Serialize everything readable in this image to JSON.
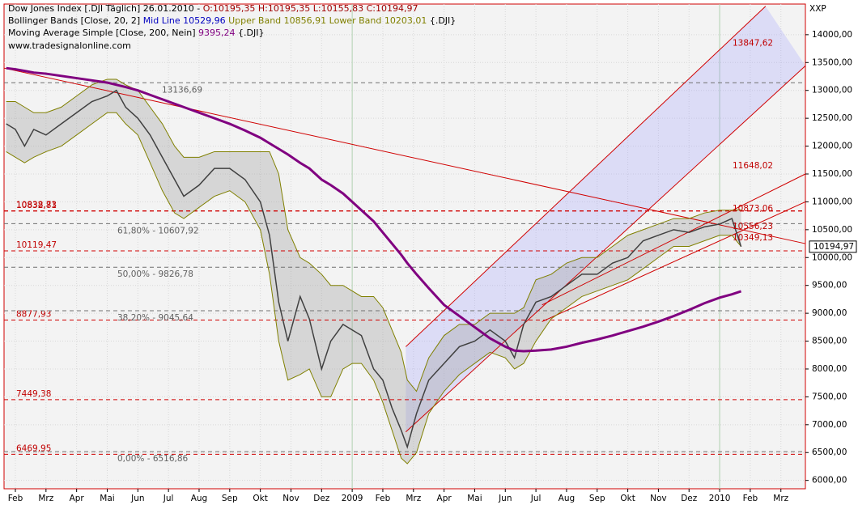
{
  "chart_data": {
    "type": "line",
    "header": {
      "instrument": "Dow Jones Index [.DJI Täglich] 26.01.2010 -",
      "ohlc": "O:10195,35 H:10195,35 L:10155,83 C:10194,97",
      "bb_name": "Bollinger Bands [Close, 20, 2]",
      "bb_mid": "Mid Line 10529,96",
      "bb_upper": "Upper Band 10856,91 Lower Band 10203,01",
      "bb_symbol": "{.DJI}",
      "ma_name": "Moving Average Simple [Close, 200, Nein]",
      "ma_value": "9395,24",
      "ma_symbol": "{.DJI}",
      "website": "www.tradesignalonline.com",
      "corner": "XXP"
    },
    "x": [
      0.7,
      1.0,
      1.3,
      1.6,
      2.0,
      2.5,
      3.0,
      3.5,
      4.0,
      4.3,
      4.6,
      5.0,
      5.4,
      5.8,
      6.2,
      6.5,
      7.0,
      7.5,
      8.0,
      8.5,
      9.0,
      9.3,
      9.6,
      9.9,
      10.3,
      10.6,
      11.0,
      11.3,
      11.7,
      12.0,
      12.3,
      12.7,
      13.0,
      13.3,
      13.6,
      13.8,
      14.1,
      14.5,
      15.0,
      15.5,
      16.0,
      16.5,
      17.0,
      17.3,
      17.6,
      18.0,
      18.5,
      19.0,
      19.5,
      20.0,
      20.5,
      21.0,
      21.5,
      22.0,
      22.5,
      23.0,
      23.5,
      24.0,
      24.4,
      24.7
    ],
    "series": [
      {
        "name": "Upper Band",
        "color": "#808000",
        "values": [
          12800,
          12800,
          12700,
          12600,
          12600,
          12700,
          12900,
          13100,
          13200,
          13200,
          13100,
          13000,
          12700,
          12400,
          12000,
          11800,
          11800,
          11900,
          11900,
          11900,
          11900,
          11900,
          11500,
          10500,
          10000,
          9900,
          9700,
          9500,
          9500,
          9400,
          9300,
          9300,
          9100,
          8700,
          8300,
          7800,
          7600,
          8200,
          8600,
          8800,
          8800,
          9000,
          9000,
          9000,
          9100,
          9600,
          9700,
          9900,
          10000,
          10000,
          10200,
          10400,
          10500,
          10600,
          10700,
          10700,
          10800,
          10850,
          10850,
          10860
        ]
      },
      {
        "name": "Lower Band",
        "color": "#808000",
        "values": [
          11900,
          11800,
          11700,
          11800,
          11900,
          12000,
          12200,
          12400,
          12600,
          12600,
          12400,
          12200,
          11700,
          11200,
          10800,
          10700,
          10900,
          11100,
          11200,
          11000,
          10500,
          9700,
          8500,
          7800,
          7900,
          8000,
          7500,
          7500,
          8000,
          8100,
          8100,
          7800,
          7400,
          6900,
          6400,
          6300,
          6500,
          7200,
          7600,
          7900,
          8100,
          8300,
          8200,
          8000,
          8100,
          8500,
          8900,
          9100,
          9300,
          9400,
          9500,
          9600,
          9800,
          10000,
          10200,
          10200,
          10300,
          10400,
          10400,
          10200
        ]
      },
      {
        "name": "Dow Jones Index",
        "color": "#404040",
        "values": [
          12400,
          12300,
          12000,
          12300,
          12200,
          12400,
          12600,
          12800,
          12900,
          13000,
          12700,
          12500,
          12200,
          11800,
          11400,
          11100,
          11300,
          11600,
          11600,
          11400,
          11000,
          10400,
          9200,
          8500,
          9300,
          8900,
          8000,
          8500,
          8800,
          8700,
          8600,
          8000,
          7800,
          7300,
          6900,
          6600,
          7200,
          7800,
          8100,
          8400,
          8500,
          8700,
          8500,
          8200,
          8800,
          9200,
          9300,
          9500,
          9700,
          9700,
          9900,
          10000,
          10300,
          10400,
          10500,
          10450,
          10550,
          10600,
          10700,
          10195
        ]
      },
      {
        "name": "Moving Average Simple",
        "color": "#800080",
        "values": [
          13400,
          13380,
          13350,
          13320,
          13300,
          13260,
          13220,
          13180,
          13140,
          13100,
          13060,
          13000,
          12920,
          12840,
          12760,
          12700,
          12600,
          12500,
          12400,
          12280,
          12150,
          12050,
          11950,
          11850,
          11700,
          11600,
          11400,
          11300,
          11150,
          11000,
          10850,
          10650,
          10450,
          10250,
          10050,
          9900,
          9700,
          9450,
          9150,
          8950,
          8750,
          8550,
          8400,
          8330,
          8320,
          8330,
          8350,
          8400,
          8470,
          8530,
          8600,
          8680,
          8760,
          8850,
          8950,
          9060,
          9180,
          9280,
          9340,
          9395
        ]
      }
    ],
    "trendlines": [
      {
        "x": [
          0.63,
          26.8
        ],
        "y": [
          13400,
          10250
        ]
      },
      {
        "x": [
          13.75,
          26.8
        ],
        "y": [
          6870,
          13440
        ]
      },
      {
        "x": [
          13.75,
          25.5
        ],
        "y": [
          8400,
          14510
        ]
      },
      {
        "x": [
          18.2,
          26.8
        ],
        "y": [
          9150,
          11500
        ]
      },
      {
        "x": [
          18.2,
          26.8
        ],
        "y": [
          8850,
          11000
        ]
      }
    ],
    "levels": [
      {
        "value": 10838.73,
        "label": "10838,73"
      },
      {
        "value": 10832.81,
        "label": "10832,81"
      },
      {
        "value": 10119.47,
        "label": "10119,47"
      },
      {
        "value": 8877.93,
        "label": "8877,93"
      },
      {
        "value": 7449.38,
        "label": "7449,38"
      },
      {
        "value": 6469.95,
        "label": "6469,95"
      }
    ],
    "fib_levels": [
      {
        "value": 13136.69,
        "label": "13136,69"
      },
      {
        "value": 10607.92,
        "label": "61,80% - 10607,92"
      },
      {
        "value": 9826.78,
        "label": "50,00% - 9826,78"
      },
      {
        "value": 9045.64,
        "label": "38,20% - 9045,64"
      },
      {
        "value": 6516.86,
        "label": "0,00% - 6516,86"
      }
    ],
    "annotations": [
      {
        "value": 13847.62,
        "label": "13847,62"
      },
      {
        "value": 11648.02,
        "label": "11648,02"
      },
      {
        "value": 10873.06,
        "label": "10873,06"
      },
      {
        "value": 10556.23,
        "label": "10556,23"
      },
      {
        "value": 10349.13,
        "label": "10349,13"
      }
    ],
    "last_price": {
      "value": 10194.97,
      "label": "10194,97"
    },
    "xlim": [
      0.63,
      26.8
    ],
    "ylim": [
      5850,
      14550
    ],
    "xticks": [
      {
        "value": 1,
        "label": "Feb"
      },
      {
        "value": 2,
        "label": "Mrz"
      },
      {
        "value": 3,
        "label": "Apr"
      },
      {
        "value": 4,
        "label": "Mai"
      },
      {
        "value": 5,
        "label": "Jun"
      },
      {
        "value": 6,
        "label": "Jul"
      },
      {
        "value": 7,
        "label": "Aug"
      },
      {
        "value": 8,
        "label": "Sep"
      },
      {
        "value": 9,
        "label": "Okt"
      },
      {
        "value": 10,
        "label": "Nov"
      },
      {
        "value": 11,
        "label": "Dez"
      },
      {
        "value": 12,
        "label": "2009"
      },
      {
        "value": 13,
        "label": "Feb"
      },
      {
        "value": 14,
        "label": "Mrz"
      },
      {
        "value": 15,
        "label": "Apr"
      },
      {
        "value": 16,
        "label": "Mai"
      },
      {
        "value": 17,
        "label": "Jun"
      },
      {
        "value": 18,
        "label": "Jul"
      },
      {
        "value": 19,
        "label": "Aug"
      },
      {
        "value": 20,
        "label": "Sep"
      },
      {
        "value": 21,
        "label": "Okt"
      },
      {
        "value": 22,
        "label": "Nov"
      },
      {
        "value": 23,
        "label": "Dez"
      },
      {
        "value": 24,
        "label": "2010"
      },
      {
        "value": 25,
        "label": "Feb"
      },
      {
        "value": 26,
        "label": "Mrz"
      }
    ],
    "yticks": [
      {
        "value": 6000,
        "label": "6000,00"
      },
      {
        "value": 6500,
        "label": "6500,00"
      },
      {
        "value": 7000,
        "label": "7000,00"
      },
      {
        "value": 7500,
        "label": "7500,00"
      },
      {
        "value": 8000,
        "label": "8000,00"
      },
      {
        "value": 8500,
        "label": "8500,00"
      },
      {
        "value": 9000,
        "label": "9000,00"
      },
      {
        "value": 9500,
        "label": "9500,00"
      },
      {
        "value": 10000,
        "label": "10000,00"
      },
      {
        "value": 10500,
        "label": "10500,00"
      },
      {
        "value": 11000,
        "label": "11000,00"
      },
      {
        "value": 11500,
        "label": "11500,00"
      },
      {
        "value": 12000,
        "label": "12000,00"
      },
      {
        "value": 12500,
        "label": "12500,00"
      },
      {
        "value": 13000,
        "label": "13000,00"
      },
      {
        "value": 13500,
        "label": "13500,00"
      },
      {
        "value": 14000,
        "label": "14000,00"
      }
    ],
    "grid": true
  }
}
